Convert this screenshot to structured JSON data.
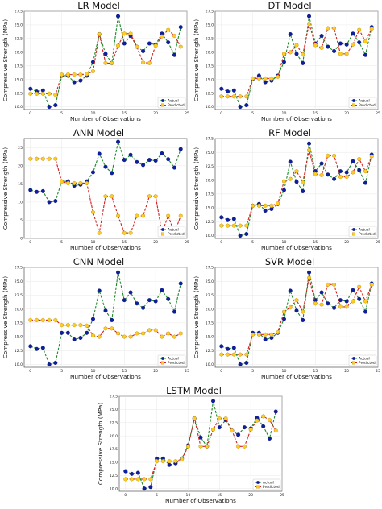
{
  "figure": {
    "xlabel": "Number of Observations",
    "ylabel": "Compressive Strength (MPa)",
    "x_ticks": [
      0,
      5,
      10,
      15,
      20,
      25
    ],
    "y_ticks": [
      10.0,
      12.5,
      15.0,
      17.5,
      20.0,
      22.5,
      25.0,
      27.5
    ],
    "colors": {
      "actual_line": "#1f8a2b",
      "actual_marker": "#0d1f9e",
      "predicted_line": "#d42020",
      "predicted_marker": "#ffcc22"
    }
  },
  "chart_data": [
    {
      "type": "line",
      "title": "LR Model",
      "xlabel": "Number of Observations",
      "ylabel": "Compressive Strength (MPa)",
      "xlim": [
        -1,
        25
      ],
      "ylim": [
        9.5,
        27.5
      ],
      "grid": true,
      "legend": "lower-right",
      "x": [
        0,
        1,
        2,
        3,
        4,
        5,
        6,
        7,
        8,
        9,
        10,
        11,
        12,
        13,
        14,
        15,
        16,
        17,
        18,
        19,
        20,
        21,
        22,
        23,
        24
      ],
      "series": [
        {
          "name": "Actual",
          "values": [
            13.3,
            12.8,
            13.0,
            10.0,
            10.3,
            15.7,
            15.7,
            14.5,
            14.8,
            15.7,
            18.2,
            23.3,
            19.7,
            18.0,
            26.6,
            21.6,
            23.0,
            21.0,
            20.2,
            21.6,
            21.4,
            23.4,
            21.8,
            19.5,
            24.6
          ]
        },
        {
          "name": "Predicted",
          "values": [
            12.4,
            12.4,
            12.4,
            12.4,
            12.2,
            15.9,
            15.9,
            15.9,
            15.9,
            16.0,
            16.5,
            23.3,
            18.0,
            18.0,
            21.2,
            23.4,
            23.4,
            21.0,
            18.1,
            18.0,
            21.2,
            22.9,
            24.1,
            23.0,
            21.0
          ]
        }
      ]
    },
    {
      "type": "line",
      "title": "DT Model",
      "xlabel": "Number of Observations",
      "ylabel": "Compressive Strength (MPa)",
      "xlim": [
        -1,
        25
      ],
      "ylim": [
        9.5,
        27.5
      ],
      "grid": true,
      "legend": "lower-right",
      "x": [
        0,
        1,
        2,
        3,
        4,
        5,
        6,
        7,
        8,
        9,
        10,
        11,
        12,
        13,
        14,
        15,
        16,
        17,
        18,
        19,
        20,
        21,
        22,
        23,
        24
      ],
      "series": [
        {
          "name": "Actual",
          "values": [
            13.3,
            12.8,
            13.0,
            10.0,
            10.3,
            15.1,
            15.7,
            14.5,
            14.8,
            15.7,
            18.2,
            23.3,
            19.7,
            18.0,
            26.6,
            21.6,
            23.0,
            21.0,
            20.2,
            21.6,
            21.4,
            23.4,
            21.8,
            19.5,
            24.6
          ]
        },
        {
          "name": "Predicted",
          "values": [
            11.9,
            11.9,
            11.9,
            11.9,
            11.9,
            15.2,
            15.2,
            15.2,
            15.2,
            15.5,
            19.7,
            20.0,
            21.3,
            19.6,
            25.2,
            21.3,
            20.8,
            24.4,
            24.4,
            19.7,
            19.7,
            21.4,
            24.1,
            22.0,
            24.3
          ]
        }
      ]
    },
    {
      "type": "line",
      "title": "ANN Model",
      "xlabel": "Number of Observations",
      "ylabel": "Compressive Strength (MPa)",
      "xlim": [
        -1,
        25
      ],
      "ylim": [
        0,
        27.5
      ],
      "grid": true,
      "legend": "lower-right",
      "x": [
        0,
        1,
        2,
        3,
        4,
        5,
        6,
        7,
        8,
        9,
        10,
        11,
        12,
        13,
        14,
        15,
        16,
        17,
        18,
        19,
        20,
        21,
        22,
        23,
        24
      ],
      "series": [
        {
          "name": "Actual",
          "values": [
            13.3,
            12.8,
            13.0,
            10.0,
            10.3,
            15.7,
            15.7,
            14.5,
            14.8,
            15.7,
            18.2,
            23.3,
            19.7,
            18.0,
            26.6,
            21.6,
            23.0,
            21.0,
            20.2,
            21.6,
            21.4,
            23.4,
            21.8,
            19.5,
            24.6
          ]
        },
        {
          "name": "Predicted",
          "values": [
            21.9,
            21.9,
            21.9,
            21.9,
            21.9,
            15.6,
            15.2,
            15.2,
            15.2,
            15.2,
            7.2,
            1.5,
            11.6,
            11.6,
            6.2,
            1.5,
            1.5,
            6.2,
            6.2,
            11.6,
            11.6,
            1.5,
            6.2,
            1.5,
            6.2
          ]
        }
      ]
    },
    {
      "type": "line",
      "title": "RF Model",
      "xlabel": "Number of Observations",
      "ylabel": "Compressive Strength (MPa)",
      "xlim": [
        -1,
        25
      ],
      "ylim": [
        9.5,
        27.5
      ],
      "grid": true,
      "legend": "lower-right",
      "x": [
        0,
        1,
        2,
        3,
        4,
        5,
        6,
        7,
        8,
        9,
        10,
        11,
        12,
        13,
        14,
        15,
        16,
        17,
        18,
        19,
        20,
        21,
        22,
        23,
        24
      ],
      "series": [
        {
          "name": "Actual",
          "values": [
            13.3,
            12.8,
            13.0,
            10.0,
            10.3,
            15.4,
            15.7,
            14.5,
            14.8,
            15.7,
            18.2,
            23.3,
            19.7,
            18.0,
            26.6,
            21.6,
            23.0,
            21.0,
            20.2,
            21.6,
            21.4,
            23.4,
            21.8,
            19.5,
            24.6
          ]
        },
        {
          "name": "Predicted",
          "values": [
            11.8,
            11.8,
            11.8,
            11.8,
            11.8,
            15.4,
            15.4,
            15.4,
            15.4,
            15.8,
            19.8,
            20.2,
            21.6,
            19.6,
            25.4,
            21.1,
            20.9,
            24.4,
            24.4,
            20.6,
            20.6,
            21.4,
            23.8,
            21.6,
            24.3
          ]
        }
      ]
    },
    {
      "type": "line",
      "title": "CNN Model",
      "xlabel": "Number of Observations",
      "ylabel": "Compressive Strength (MPa)",
      "xlim": [
        -1,
        25
      ],
      "ylim": [
        9.5,
        27.5
      ],
      "grid": true,
      "legend": "lower-right",
      "x": [
        0,
        1,
        2,
        3,
        4,
        5,
        6,
        7,
        8,
        9,
        10,
        11,
        12,
        13,
        14,
        15,
        16,
        17,
        18,
        19,
        20,
        21,
        22,
        23,
        24
      ],
      "series": [
        {
          "name": "Actual",
          "values": [
            13.3,
            12.8,
            13.0,
            10.0,
            10.3,
            15.7,
            15.7,
            14.5,
            14.8,
            15.7,
            18.2,
            23.3,
            19.7,
            18.0,
            26.6,
            21.6,
            23.0,
            21.0,
            20.2,
            21.6,
            21.4,
            23.4,
            21.8,
            19.5,
            24.6
          ]
        },
        {
          "name": "Predicted",
          "values": [
            18.0,
            18.0,
            18.0,
            18.0,
            18.0,
            17.1,
            17.1,
            17.1,
            17.1,
            17.0,
            15.2,
            15.0,
            16.5,
            16.5,
            15.6,
            15.0,
            15.0,
            15.6,
            15.6,
            16.2,
            16.2,
            15.0,
            15.6,
            15.0,
            15.6
          ]
        }
      ]
    },
    {
      "type": "line",
      "title": "SVR Model",
      "xlabel": "Number of Observations",
      "ylabel": "Compressive Strength (MPa)",
      "xlim": [
        -1,
        25
      ],
      "ylim": [
        9.5,
        27.5
      ],
      "grid": true,
      "legend": "lower-right",
      "x": [
        0,
        1,
        2,
        3,
        4,
        5,
        6,
        7,
        8,
        9,
        10,
        11,
        12,
        13,
        14,
        15,
        16,
        17,
        18,
        19,
        20,
        21,
        22,
        23,
        24
      ],
      "series": [
        {
          "name": "Actual",
          "values": [
            13.3,
            12.8,
            13.0,
            10.0,
            10.3,
            15.7,
            15.7,
            14.5,
            14.8,
            15.7,
            18.2,
            23.3,
            19.7,
            18.0,
            26.6,
            21.6,
            23.0,
            21.0,
            20.2,
            21.6,
            21.4,
            23.4,
            21.8,
            19.5,
            24.6
          ]
        },
        {
          "name": "Predicted",
          "values": [
            11.8,
            11.8,
            11.8,
            11.8,
            11.8,
            15.4,
            15.4,
            15.4,
            15.4,
            15.8,
            19.5,
            20.3,
            21.6,
            19.5,
            25.6,
            21.0,
            20.8,
            24.4,
            24.4,
            20.4,
            20.4,
            21.4,
            24.0,
            21.4,
            24.4
          ]
        }
      ]
    },
    {
      "type": "line",
      "title": "LSTM Model",
      "xlabel": "Number of Observations",
      "ylabel": "Compressive Strength (MPa)",
      "xlim": [
        -1,
        25
      ],
      "ylim": [
        9.5,
        27.5
      ],
      "grid": true,
      "legend": "lower-right",
      "x": [
        0,
        1,
        2,
        3,
        4,
        5,
        6,
        7,
        8,
        9,
        10,
        11,
        12,
        13,
        14,
        15,
        16,
        17,
        18,
        19,
        20,
        21,
        22,
        23,
        24
      ],
      "series": [
        {
          "name": "Actual",
          "values": [
            13.3,
            12.8,
            13.0,
            10.0,
            10.3,
            15.7,
            15.7,
            14.5,
            14.8,
            15.7,
            18.2,
            23.3,
            19.7,
            18.0,
            26.6,
            21.6,
            23.0,
            21.0,
            20.2,
            21.6,
            21.4,
            23.4,
            21.8,
            19.5,
            24.6
          ]
        },
        {
          "name": "Predicted",
          "values": [
            11.8,
            11.8,
            11.8,
            11.8,
            11.8,
            15.2,
            15.2,
            15.2,
            15.2,
            15.6,
            18.0,
            23.3,
            18.0,
            18.0,
            21.2,
            23.3,
            23.3,
            21.0,
            18.0,
            18.0,
            21.2,
            22.9,
            23.7,
            23.0,
            21.0
          ]
        }
      ]
    }
  ]
}
